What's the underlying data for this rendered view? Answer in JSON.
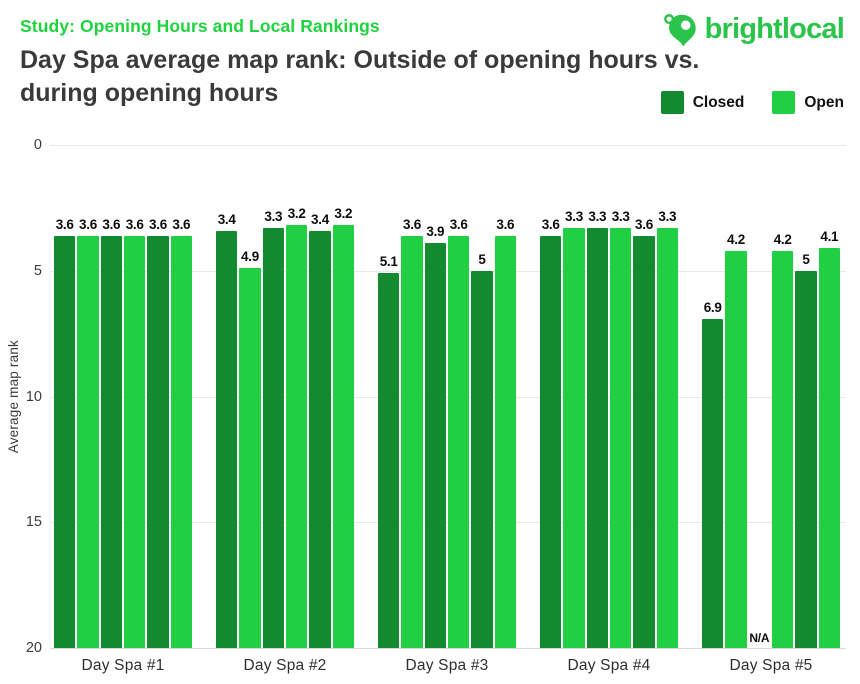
{
  "header": {
    "eyebrow": "Study: Opening Hours and Local Rankings",
    "title_line1": "Day Spa average map rank: Outside of opening hours vs.",
    "title_line2": "during opening hours",
    "logo_text": "brightlocal"
  },
  "colors": {
    "closed": "#138a30",
    "open": "#21cf43",
    "eyebrow_green": "#1ed33e",
    "logo_green": "#2bc44b",
    "title_gray": "#3a3a3a",
    "gridline": "#e9e9e9"
  },
  "legend": {
    "items": [
      {
        "label": "Closed",
        "series": "Closed",
        "color": "#138a30"
      },
      {
        "label": "Open",
        "series": "Open",
        "color": "#21cf43"
      }
    ]
  },
  "chart_data": {
    "type": "bar",
    "title": "Day Spa average map rank: Outside of opening hours vs. during opening hours",
    "subtitle": "Study: Opening Hours and Local Rankings",
    "xlabel": "",
    "ylabel": "Average map rank",
    "ylim": [
      0,
      20
    ],
    "y_inverted": true,
    "yticks": [
      0,
      5,
      10,
      15,
      20
    ],
    "grid": true,
    "legend_position": "top-right",
    "series_names": [
      "Closed",
      "Open"
    ],
    "series_colors": {
      "Closed": "#138a30",
      "Open": "#21cf43"
    },
    "bar_pattern_per_category": "3 alternating pairs of Closed/Open bars",
    "categories": [
      "Day Spa #1",
      "Day Spa #2",
      "Day Spa #3",
      "Day Spa #4",
      "Day Spa #5"
    ],
    "groups": [
      {
        "category": "Day Spa #1",
        "bars": [
          {
            "series": "Closed",
            "value": 3.6,
            "label": "3.6"
          },
          {
            "series": "Open",
            "value": 3.6,
            "label": "3.6"
          },
          {
            "series": "Closed",
            "value": 3.6,
            "label": "3.6"
          },
          {
            "series": "Open",
            "value": 3.6,
            "label": "3.6"
          },
          {
            "series": "Closed",
            "value": 3.6,
            "label": "3.6"
          },
          {
            "series": "Open",
            "value": 3.6,
            "label": "3.6"
          }
        ]
      },
      {
        "category": "Day Spa #2",
        "bars": [
          {
            "series": "Closed",
            "value": 3.4,
            "label": "3.4"
          },
          {
            "series": "Open",
            "value": 4.9,
            "label": "4.9"
          },
          {
            "series": "Closed",
            "value": 3.3,
            "label": "3.3"
          },
          {
            "series": "Open",
            "value": 3.2,
            "label": "3.2"
          },
          {
            "series": "Closed",
            "value": 3.4,
            "label": "3.4"
          },
          {
            "series": "Open",
            "value": 3.2,
            "label": "3.2"
          }
        ]
      },
      {
        "category": "Day Spa #3",
        "bars": [
          {
            "series": "Closed",
            "value": 5.1,
            "label": "5.1"
          },
          {
            "series": "Open",
            "value": 3.6,
            "label": "3.6"
          },
          {
            "series": "Closed",
            "value": 3.9,
            "label": "3.9"
          },
          {
            "series": "Open",
            "value": 3.6,
            "label": "3.6"
          },
          {
            "series": "Closed",
            "value": 5,
            "label": "5"
          },
          {
            "series": "Open",
            "value": 3.6,
            "label": "3.6"
          }
        ]
      },
      {
        "category": "Day Spa #4",
        "bars": [
          {
            "series": "Closed",
            "value": 3.6,
            "label": "3.6"
          },
          {
            "series": "Open",
            "value": 3.3,
            "label": "3.3"
          },
          {
            "series": "Closed",
            "value": 3.3,
            "label": "3.3"
          },
          {
            "series": "Open",
            "value": 3.3,
            "label": "3.3"
          },
          {
            "series": "Closed",
            "value": 3.6,
            "label": "3.6"
          },
          {
            "series": "Open",
            "value": 3.3,
            "label": "3.3"
          }
        ]
      },
      {
        "category": "Day Spa #5",
        "bars": [
          {
            "series": "Closed",
            "value": 6.9,
            "label": "6.9"
          },
          {
            "series": "Open",
            "value": 4.2,
            "label": "4.2"
          },
          {
            "series": "Closed",
            "value": null,
            "label": "N/A"
          },
          {
            "series": "Open",
            "value": 4.2,
            "label": "4.2"
          },
          {
            "series": "Closed",
            "value": 5,
            "label": "5"
          },
          {
            "series": "Open",
            "value": 4.1,
            "label": "4.1"
          }
        ]
      }
    ]
  }
}
